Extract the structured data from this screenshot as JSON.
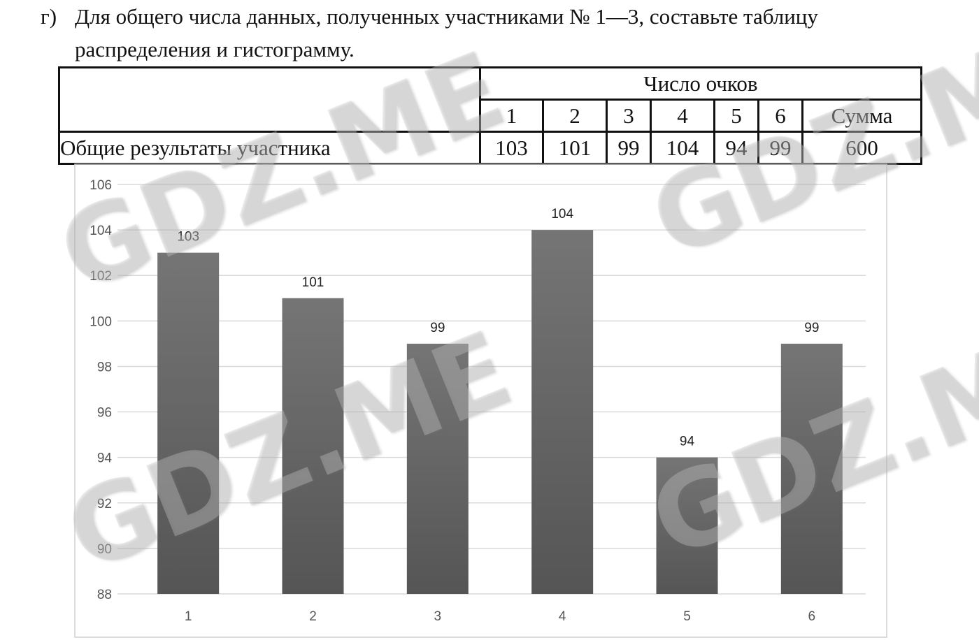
{
  "task": {
    "marker": "г)",
    "line1": "Для общего числа данных, полученных участниками № 1—3, составьте таблицу",
    "line2": "распределения и гистограмму."
  },
  "table": {
    "group_header": "Число очков",
    "columns": [
      "1",
      "2",
      "3",
      "4",
      "5",
      "6",
      "Сумма"
    ],
    "row_label": "Общие результаты участника",
    "values": [
      "103",
      "101",
      "99",
      "104",
      "94",
      "99",
      "600"
    ]
  },
  "chart_data": {
    "type": "bar",
    "categories": [
      "1",
      "2",
      "3",
      "4",
      "5",
      "6"
    ],
    "values": [
      103,
      101,
      99,
      104,
      94,
      99
    ],
    "ylim": [
      88,
      106
    ],
    "yticks": [
      88,
      90,
      92,
      94,
      96,
      98,
      100,
      102,
      104,
      106
    ],
    "grid": true,
    "data_labels": true,
    "bar_color": "#666666"
  },
  "watermark": "GDZ.ME"
}
